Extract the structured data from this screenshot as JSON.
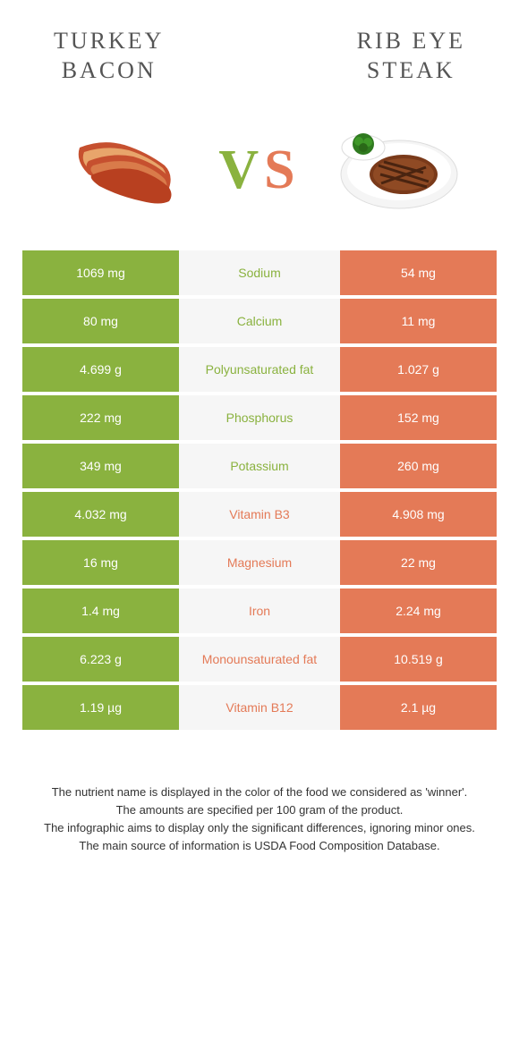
{
  "food_left": {
    "title": "TURKEY\nBACON"
  },
  "food_right": {
    "title": "RIB EYE\nSTEAK"
  },
  "vs": {
    "v": "V",
    "s": "S"
  },
  "colors": {
    "left": "#8ab23f",
    "right": "#e47a57",
    "row_bg": "#f6f6f6"
  },
  "rows": [
    {
      "left": "1069 mg",
      "label": "Sodium",
      "right": "54 mg",
      "winner": "left"
    },
    {
      "left": "80 mg",
      "label": "Calcium",
      "right": "11 mg",
      "winner": "left"
    },
    {
      "left": "4.699 g",
      "label": "Polyunsaturated fat",
      "right": "1.027 g",
      "winner": "left"
    },
    {
      "left": "222 mg",
      "label": "Phosphorus",
      "right": "152 mg",
      "winner": "left"
    },
    {
      "left": "349 mg",
      "label": "Potassium",
      "right": "260 mg",
      "winner": "left"
    },
    {
      "left": "4.032 mg",
      "label": "Vitamin B3",
      "right": "4.908 mg",
      "winner": "right"
    },
    {
      "left": "16 mg",
      "label": "Magnesium",
      "right": "22 mg",
      "winner": "right"
    },
    {
      "left": "1.4 mg",
      "label": "Iron",
      "right": "2.24 mg",
      "winner": "right"
    },
    {
      "left": "6.223 g",
      "label": "Monounsaturated fat",
      "right": "10.519 g",
      "winner": "right"
    },
    {
      "left": "1.19 µg",
      "label": "Vitamin B12",
      "right": "2.1 µg",
      "winner": "right"
    }
  ],
  "footer": {
    "l1": "The nutrient name is displayed in the color of the food we considered as 'winner'.",
    "l2": "The amounts are specified per 100 gram of the product.",
    "l3": "The infographic aims to display only the significant differences, ignoring minor ones.",
    "l4": "The main source of information is USDA Food Composition Database."
  }
}
